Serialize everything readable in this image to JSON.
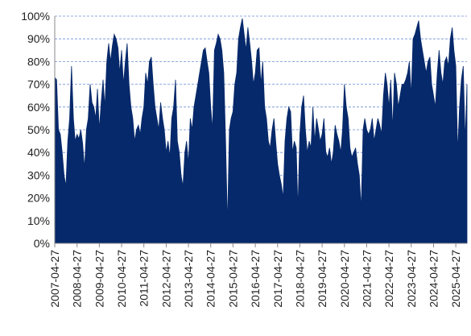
{
  "chart_data": {
    "type": "area",
    "color": "#06296b",
    "grid": true,
    "x": [
      "2007-04-27",
      "2007-05-27",
      "2007-06-27",
      "2007-07-27",
      "2007-08-27",
      "2007-09-27",
      "2007-10-27",
      "2007-11-27",
      "2007-12-27",
      "2008-01-27",
      "2008-02-27",
      "2008-03-27",
      "2008-04-27",
      "2008-05-27",
      "2008-06-27",
      "2008-07-27",
      "2008-08-27",
      "2008-09-27",
      "2008-10-27",
      "2008-11-27",
      "2008-12-27",
      "2009-01-27",
      "2009-02-27",
      "2009-03-27",
      "2009-04-27",
      "2009-05-27",
      "2009-06-27",
      "2009-07-27",
      "2009-08-27",
      "2009-09-27",
      "2009-10-27",
      "2009-11-27",
      "2009-12-27",
      "2010-01-27",
      "2010-02-27",
      "2010-03-27",
      "2010-04-27",
      "2010-05-27",
      "2010-06-27",
      "2010-07-27",
      "2010-08-27",
      "2010-09-27",
      "2010-10-27",
      "2010-11-27",
      "2010-12-27",
      "2011-01-27",
      "2011-02-27",
      "2011-03-27",
      "2011-04-27",
      "2011-05-27",
      "2011-06-27",
      "2011-07-27",
      "2011-08-27",
      "2011-09-27",
      "2011-10-27",
      "2011-11-27",
      "2011-12-27",
      "2012-01-27",
      "2012-02-27",
      "2012-03-27",
      "2012-04-27",
      "2012-05-27",
      "2012-06-27",
      "2012-07-27",
      "2012-08-27",
      "2012-09-27",
      "2012-10-27",
      "2012-11-27",
      "2012-12-27",
      "2013-01-27",
      "2013-02-27",
      "2013-03-27",
      "2013-04-27",
      "2013-05-27",
      "2013-06-27",
      "2013-07-27",
      "2013-08-27",
      "2013-09-27",
      "2013-10-27",
      "2013-11-27",
      "2013-12-27",
      "2014-01-27",
      "2014-02-27",
      "2014-03-27",
      "2014-04-27",
      "2014-05-27",
      "2014-06-27",
      "2014-07-27",
      "2014-08-27",
      "2014-09-27",
      "2014-10-27",
      "2014-11-27",
      "2014-12-27",
      "2015-01-27",
      "2015-02-27",
      "2015-03-27",
      "2015-04-27",
      "2015-05-27",
      "2015-06-27",
      "2015-07-27",
      "2015-08-27",
      "2015-09-27",
      "2015-10-27",
      "2015-11-27",
      "2015-12-27",
      "2016-01-27",
      "2016-02-27",
      "2016-03-27",
      "2016-04-27",
      "2016-05-27",
      "2016-06-27",
      "2016-07-27",
      "2016-08-27",
      "2016-09-27",
      "2016-10-27",
      "2016-11-27",
      "2016-12-27",
      "2017-01-27",
      "2017-02-27",
      "2017-03-27",
      "2017-04-27",
      "2017-05-27",
      "2017-06-27",
      "2017-07-27",
      "2017-08-27",
      "2017-09-27",
      "2017-10-27",
      "2017-11-27",
      "2017-12-27",
      "2018-01-27",
      "2018-02-27",
      "2018-03-27",
      "2018-04-27",
      "2018-05-27",
      "2018-06-27",
      "2018-07-27",
      "2018-08-27",
      "2018-09-27",
      "2018-10-27",
      "2018-11-27",
      "2018-12-27",
      "2019-01-27",
      "2019-02-27",
      "2019-03-27",
      "2019-04-27",
      "2019-05-27",
      "2019-06-27",
      "2019-07-27",
      "2019-08-27",
      "2019-09-27",
      "2019-10-27",
      "2019-11-27",
      "2019-12-27",
      "2020-01-27",
      "2020-02-27",
      "2020-03-27",
      "2020-04-27",
      "2020-05-27",
      "2020-06-27",
      "2020-07-27",
      "2020-08-27",
      "2020-09-27",
      "2020-10-27",
      "2020-11-27",
      "2020-12-27",
      "2021-01-27",
      "2021-02-27",
      "2021-03-27",
      "2021-04-27",
      "2021-05-27",
      "2021-06-27",
      "2021-07-27",
      "2021-08-27",
      "2021-09-27",
      "2021-10-27",
      "2021-11-27",
      "2021-12-27",
      "2022-01-27",
      "2022-02-27",
      "2022-03-27",
      "2022-04-27",
      "2022-05-27",
      "2022-06-27",
      "2022-07-27",
      "2022-08-27",
      "2022-09-27",
      "2022-10-27",
      "2022-11-27",
      "2022-12-27",
      "2023-01-27",
      "2023-02-27",
      "2023-03-27",
      "2023-04-27",
      "2023-05-27",
      "2023-06-27",
      "2023-07-27",
      "2023-08-27",
      "2023-09-27",
      "2023-10-27",
      "2023-11-27",
      "2023-12-27",
      "2024-01-27",
      "2024-02-27",
      "2024-03-27",
      "2024-04-27",
      "2024-05-27",
      "2024-06-27",
      "2024-07-27",
      "2024-08-27",
      "2024-09-27",
      "2024-10-27",
      "2024-11-27",
      "2024-12-27",
      "2025-01-27",
      "2025-02-27",
      "2025-03-27",
      "2025-04-27",
      "2025-05-27",
      "2025-06-27",
      "2025-07-27",
      "2025-08-27",
      "2025-09-27",
      "2025-10-27"
    ],
    "values": [
      73,
      72,
      50,
      48,
      40,
      30,
      25,
      45,
      55,
      78,
      55,
      45,
      48,
      46,
      50,
      44,
      33,
      50,
      55,
      70,
      62,
      60,
      55,
      68,
      50,
      62,
      72,
      60,
      80,
      88,
      80,
      87,
      92,
      90,
      86,
      75,
      85,
      70,
      80,
      88,
      70,
      60,
      55,
      45,
      50,
      52,
      48,
      55,
      60,
      75,
      70,
      80,
      82,
      70,
      60,
      55,
      50,
      62,
      55,
      50,
      40,
      45,
      38,
      55,
      60,
      72,
      45,
      40,
      30,
      25,
      40,
      45,
      35,
      55,
      50,
      60,
      65,
      70,
      75,
      80,
      85,
      86,
      80,
      75,
      60,
      50,
      85,
      88,
      92,
      90,
      85,
      75,
      45,
      8,
      50,
      55,
      58,
      70,
      75,
      90,
      95,
      99,
      92,
      85,
      95,
      88,
      80,
      70,
      75,
      85,
      86,
      70,
      80,
      60,
      55,
      45,
      42,
      50,
      55,
      45,
      35,
      30,
      26,
      20,
      45,
      55,
      60,
      58,
      40,
      45,
      42,
      15,
      48,
      60,
      65,
      50,
      40,
      45,
      42,
      60,
      45,
      55,
      50,
      45,
      48,
      55,
      40,
      38,
      42,
      35,
      40,
      52,
      48,
      45,
      40,
      50,
      70,
      60,
      55,
      42,
      38,
      40,
      42,
      35,
      30,
      15,
      50,
      55,
      50,
      48,
      50,
      55,
      45,
      50,
      55,
      52,
      48,
      65,
      75,
      70,
      60,
      72,
      50,
      75,
      70,
      60,
      65,
      70,
      70,
      72,
      75,
      80,
      65,
      90,
      92,
      95,
      98,
      90,
      85,
      80,
      75,
      80,
      82,
      70,
      65,
      60,
      75,
      85,
      75,
      70,
      80,
      82,
      78,
      90,
      95,
      85,
      78,
      40,
      60,
      72,
      78,
      45,
      70
    ],
    "xlim": [
      "2007-04-27",
      "2025-10-27"
    ],
    "xticks": [
      "2007-04-27",
      "2008-04-27",
      "2009-04-27",
      "2010-04-27",
      "2011-04-27",
      "2012-04-27",
      "2013-04-27",
      "2014-04-27",
      "2015-04-27",
      "2016-04-27",
      "2017-04-27",
      "2018-04-27",
      "2019-04-27",
      "2020-04-27",
      "2021-04-27",
      "2022-04-27",
      "2023-04-27",
      "2024-04-27",
      "2025-04-27"
    ],
    "ylim": [
      0,
      100
    ],
    "yticks": [
      {
        "value": 0,
        "label": "0%"
      },
      {
        "value": 10,
        "label": "10%"
      },
      {
        "value": 20,
        "label": "20%"
      },
      {
        "value": 30,
        "label": "30%"
      },
      {
        "value": 40,
        "label": "40%"
      },
      {
        "value": 50,
        "label": "50%"
      },
      {
        "value": 60,
        "label": "60%"
      },
      {
        "value": 70,
        "label": "70%"
      },
      {
        "value": 80,
        "label": "80%"
      },
      {
        "value": 90,
        "label": "90%"
      },
      {
        "value": 100,
        "label": "100%"
      }
    ]
  }
}
